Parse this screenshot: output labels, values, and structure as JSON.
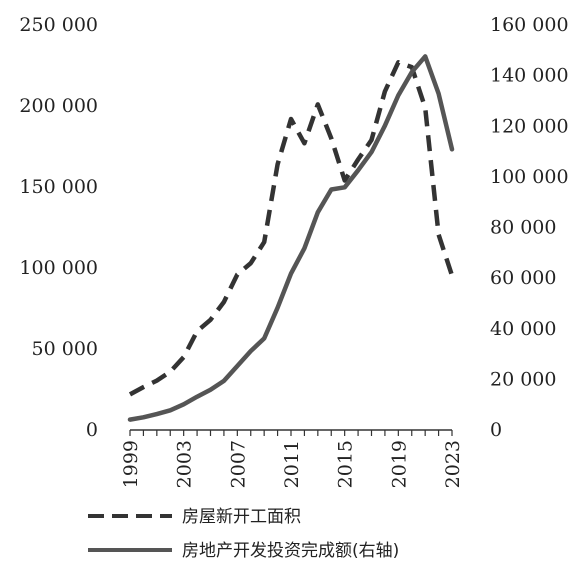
{
  "chart_data": {
    "type": "line",
    "x": [
      1999,
      2000,
      2001,
      2002,
      2003,
      2004,
      2005,
      2006,
      2007,
      2008,
      2009,
      2010,
      2011,
      2012,
      2013,
      2014,
      2015,
      2016,
      2017,
      2018,
      2019,
      2020,
      2021,
      2022,
      2023
    ],
    "x_ticks": [
      "1999",
      "2003",
      "2007",
      "2011",
      "2015",
      "2019",
      "2023"
    ],
    "left_axis": {
      "ylim": [
        0,
        250000
      ],
      "tick_labels": [
        "0",
        "50 000",
        "100 000",
        "150 000",
        "200 000",
        "250 000"
      ]
    },
    "right_axis": {
      "ylim": [
        0,
        160000
      ],
      "tick_labels": [
        "0",
        "20 000",
        "40 000",
        "60 000",
        "80 000",
        "100 000",
        "120 000",
        "140 000",
        "160 000"
      ]
    },
    "series": [
      {
        "name": "房屋新开工面积",
        "axis": "left",
        "style": "dashed",
        "color": "#333333",
        "values": [
          22000,
          26500,
          30500,
          36000,
          45000,
          61000,
          68000,
          79000,
          96000,
          103000,
          116000,
          164000,
          192000,
          177000,
          201000,
          180000,
          154000,
          167000,
          179000,
          209000,
          227000,
          224000,
          198900,
          120600,
          95400
        ]
      },
      {
        "name": "房地产开发投资完成额(右轴)",
        "axis": "right",
        "style": "solid",
        "color": "#555555",
        "values": [
          4100,
          5000,
          6300,
          7800,
          10150,
          13160,
          15900,
          19400,
          25300,
          31200,
          36200,
          48300,
          61800,
          71800,
          86000,
          95000,
          95900,
          102600,
          109800,
          120200,
          132200,
          141400,
          147600,
          132900,
          110900
        ]
      }
    ],
    "legend": [
      "房屋新开工面积",
      "房地产开发投资完成额(右轴)"
    ],
    "legend_position": "bottom",
    "grid": false
  }
}
